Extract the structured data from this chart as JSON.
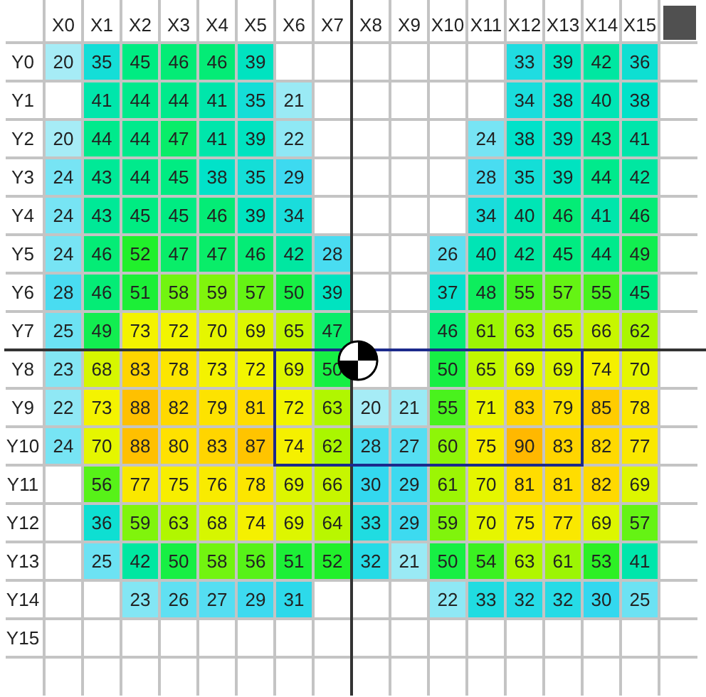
{
  "chart_data": {
    "type": "heatmap",
    "categories": [
      "X0",
      "X1",
      "X2",
      "X3",
      "X4",
      "X5",
      "X6",
      "X7",
      "X8",
      "X9",
      "X10",
      "X11",
      "X12",
      "X13",
      "X14",
      "X15"
    ],
    "y_categories": [
      "Y0",
      "Y1",
      "Y2",
      "Y3",
      "Y4",
      "Y5",
      "Y6",
      "Y7",
      "Y8",
      "Y9",
      "Y10",
      "Y11",
      "Y12",
      "Y13",
      "Y14",
      "Y15"
    ],
    "cells": [
      [
        20,
        35,
        45,
        46,
        46,
        39,
        null,
        null,
        null,
        null,
        null,
        null,
        33,
        39,
        42,
        36
      ],
      [
        null,
        41,
        44,
        44,
        41,
        35,
        21,
        null,
        null,
        null,
        null,
        null,
        34,
        38,
        40,
        38
      ],
      [
        20,
        44,
        44,
        47,
        41,
        39,
        22,
        null,
        null,
        null,
        null,
        24,
        38,
        39,
        43,
        41
      ],
      [
        24,
        43,
        44,
        45,
        38,
        35,
        29,
        null,
        null,
        null,
        null,
        28,
        35,
        39,
        44,
        42
      ],
      [
        24,
        43,
        45,
        45,
        46,
        39,
        34,
        null,
        null,
        null,
        null,
        34,
        40,
        46,
        41,
        46
      ],
      [
        24,
        46,
        52,
        47,
        47,
        46,
        42,
        28,
        null,
        null,
        26,
        40,
        42,
        45,
        44,
        49
      ],
      [
        28,
        46,
        51,
        58,
        59,
        57,
        50,
        39,
        null,
        null,
        37,
        48,
        55,
        57,
        55,
        45
      ],
      [
        25,
        49,
        73,
        72,
        70,
        69,
        65,
        47,
        null,
        null,
        46,
        61,
        63,
        65,
        66,
        62
      ],
      [
        23,
        68,
        83,
        78,
        73,
        72,
        69,
        50,
        null,
        null,
        50,
        65,
        69,
        69,
        74,
        70
      ],
      [
        22,
        73,
        88,
        82,
        79,
        81,
        72,
        63,
        20,
        21,
        55,
        71,
        83,
        79,
        85,
        78
      ],
      [
        24,
        70,
        88,
        80,
        83,
        87,
        74,
        62,
        28,
        27,
        60,
        75,
        90,
        83,
        82,
        77
      ],
      [
        null,
        56,
        77,
        75,
        76,
        78,
        69,
        66,
        30,
        29,
        61,
        70,
        81,
        81,
        82,
        69
      ],
      [
        null,
        36,
        59,
        63,
        68,
        74,
        69,
        64,
        33,
        29,
        59,
        70,
        75,
        77,
        69,
        57
      ],
      [
        null,
        25,
        42,
        50,
        58,
        56,
        51,
        52,
        32,
        21,
        50,
        54,
        63,
        61,
        53,
        41
      ],
      [
        null,
        null,
        23,
        26,
        27,
        29,
        31,
        null,
        null,
        null,
        22,
        33,
        32,
        32,
        30,
        25
      ],
      [
        null,
        null,
        null,
        null,
        null,
        null,
        null,
        null,
        null,
        null,
        null,
        null,
        null,
        null,
        null,
        null
      ]
    ],
    "data_labels": true,
    "grid": true
  }
}
